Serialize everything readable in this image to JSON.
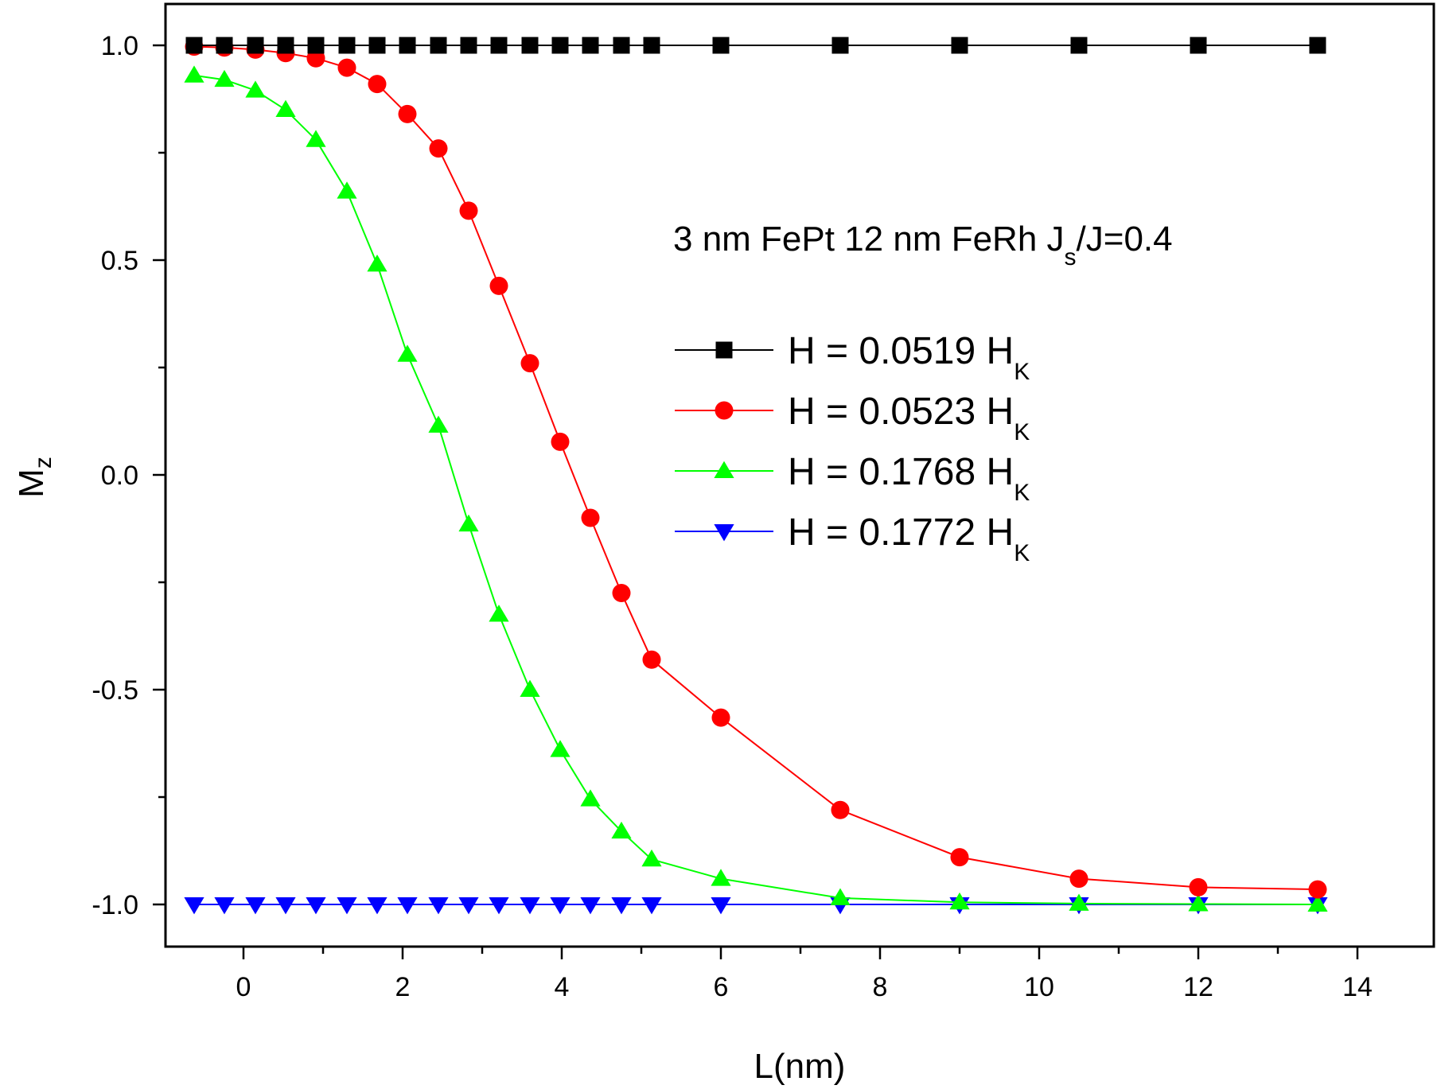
{
  "chart_data": {
    "type": "line",
    "title": "",
    "xlabel": "L(nm)",
    "ylabel": {
      "main": "M",
      "sub": "z"
    },
    "xlim": [
      -1,
      15
    ],
    "ylim": [
      -1.1,
      1.1
    ],
    "xticks": [
      0,
      2,
      4,
      6,
      8,
      10,
      12,
      14
    ],
    "xtick_labels": [
      "0",
      "2",
      "4",
      "6",
      "8",
      "10",
      "12",
      "14"
    ],
    "yticks": [
      1.0,
      0.5,
      0.0,
      -0.5,
      -1.0
    ],
    "ytick_labels": [
      "1.0",
      "0.5",
      "0.0",
      "-0.5",
      "-1.0"
    ],
    "annotation": {
      "pre": "3 nm FePt 12 nm FeRh J",
      "sub": "s",
      "post": "/J=0.4"
    },
    "x": [
      -0.62,
      -0.24,
      0.15,
      0.53,
      0.91,
      1.3,
      1.68,
      2.06,
      2.45,
      2.83,
      3.21,
      3.6,
      3.98,
      4.36,
      4.75,
      5.13,
      6.0,
      7.5,
      9.0,
      10.5,
      12.0,
      13.5
    ],
    "series": [
      {
        "name": "H = 0.0519 H",
        "sub": "K",
        "color": "#000000",
        "marker": "square",
        "values": [
          1.0,
          1.0,
          1.0,
          1.0,
          1.0,
          1.0,
          1.0,
          1.0,
          1.0,
          1.0,
          1.0,
          1.0,
          1.0,
          1.0,
          1.0,
          1.0,
          1.0,
          1.0,
          1.0,
          1.0,
          1.0,
          1.0
        ]
      },
      {
        "name": "H = 0.0523 H",
        "sub": "K",
        "color": "#ff0000",
        "marker": "circle",
        "values": [
          0.997,
          0.995,
          0.99,
          0.982,
          0.97,
          0.948,
          0.91,
          0.84,
          0.76,
          0.615,
          0.44,
          0.26,
          0.077,
          -0.1,
          -0.275,
          -0.43,
          -0.565,
          -0.78,
          -0.89,
          -0.94,
          -0.96,
          -0.965
        ]
      },
      {
        "name": "H = 0.1768 H",
        "sub": "K",
        "color": "#00ff00",
        "marker": "triangle-up",
        "values": [
          0.93,
          0.92,
          0.895,
          0.85,
          0.78,
          0.66,
          0.49,
          0.28,
          0.115,
          -0.115,
          -0.325,
          -0.5,
          -0.64,
          -0.755,
          -0.83,
          -0.895,
          -0.94,
          -0.985,
          -0.995,
          -0.998,
          -0.999,
          -1.0
        ]
      },
      {
        "name": "H = 0.1772 H",
        "sub": "K",
        "color": "#0000ff",
        "marker": "triangle-down",
        "values": [
          -1.0,
          -1.0,
          -1.0,
          -1.0,
          -1.0,
          -1.0,
          -1.0,
          -1.0,
          -1.0,
          -1.0,
          -1.0,
          -1.0,
          -1.0,
          -1.0,
          -1.0,
          -1.0,
          -1.0,
          -1.0,
          -1.0,
          -1.0,
          -1.0,
          -1.0
        ]
      }
    ],
    "legend_position": "center-right",
    "grid": false
  }
}
